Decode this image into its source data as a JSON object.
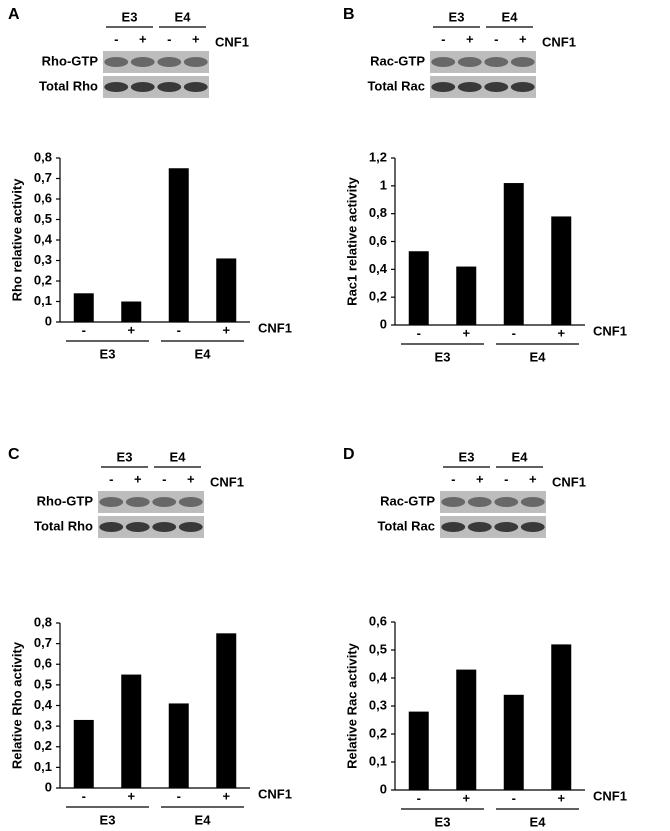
{
  "chart_data": [
    {
      "type": "bar",
      "panel": "A",
      "ylabel": "Rho relative activity",
      "categories": [
        "-",
        "+",
        "-",
        "+"
      ],
      "groups": [
        "E3",
        "E4"
      ],
      "x_label": "CNF1",
      "values": [
        0.14,
        0.1,
        0.75,
        0.31
      ],
      "color": "#000000",
      "ylim": [
        0,
        0.8
      ],
      "yticks": [
        0,
        {
          "value": 0.1,
          "label": "0,1"
        },
        {
          "value": 0.2,
          "label": "0,2"
        },
        {
          "value": 0.3,
          "label": "0,3"
        },
        {
          "value": 0.4,
          "label": "0,4"
        },
        {
          "value": 0.5,
          "label": "0,5"
        },
        {
          "value": 0.6,
          "label": "0,6"
        },
        {
          "value": 0.7,
          "label": "0,7"
        },
        {
          "value": 0.8,
          "label": "0,8"
        }
      ],
      "blot_rows": [
        "Rho-GTP",
        "Total Rho"
      ]
    },
    {
      "type": "bar",
      "panel": "B",
      "ylabel": "Rac1 relative activity",
      "categories": [
        "-",
        "+",
        "-",
        "+"
      ],
      "groups": [
        "E3",
        "E4"
      ],
      "x_label": "CNF1",
      "values": [
        0.53,
        0.42,
        1.02,
        0.78
      ],
      "color": "#000000",
      "ylim": [
        0,
        1.2
      ],
      "yticks": [
        0,
        {
          "value": 0.2,
          "label": "0,2"
        },
        {
          "value": 0.4,
          "label": "0,4"
        },
        {
          "value": 0.6,
          "label": "0,6"
        },
        {
          "value": 0.8,
          "label": "0,8"
        },
        1,
        {
          "value": 1.2,
          "label": "1,2"
        }
      ],
      "blot_rows": [
        "Rac-GTP",
        "Total Rac"
      ]
    },
    {
      "type": "bar",
      "panel": "C",
      "ylabel": "Relative Rho activity",
      "categories": [
        "-",
        "+",
        "-",
        "+"
      ],
      "groups": [
        "E3",
        "E4"
      ],
      "x_label": "CNF1",
      "values": [
        0.33,
        0.55,
        0.41,
        0.75
      ],
      "color": "#000000",
      "ylim": [
        0,
        0.8
      ],
      "yticks": [
        0,
        {
          "value": 0.1,
          "label": "0,1"
        },
        {
          "value": 0.2,
          "label": "0,2"
        },
        {
          "value": 0.3,
          "label": "0,3"
        },
        {
          "value": 0.4,
          "label": "0,4"
        },
        {
          "value": 0.5,
          "label": "0,5"
        },
        {
          "value": 0.6,
          "label": "0,6"
        },
        {
          "value": 0.7,
          "label": "0,7"
        },
        {
          "value": 0.8,
          "label": "0,8"
        }
      ],
      "blot_rows": [
        "Rho-GTP",
        "Total Rho"
      ]
    },
    {
      "type": "bar",
      "panel": "D",
      "ylabel": "Relative Rac activity",
      "categories": [
        "-",
        "+",
        "-",
        "+"
      ],
      "groups": [
        "E3",
        "E4"
      ],
      "x_label": "CNF1",
      "values": [
        0.28,
        0.43,
        0.34,
        0.52
      ],
      "color": "#000000",
      "ylim": [
        0,
        0.6
      ],
      "yticks": [
        0,
        {
          "value": 0.1,
          "label": "0,1"
        },
        {
          "value": 0.2,
          "label": "0,2"
        },
        {
          "value": 0.3,
          "label": "0,3"
        },
        {
          "value": 0.4,
          "label": "0,4"
        },
        {
          "value": 0.5,
          "label": "0,5"
        },
        {
          "value": 0.6,
          "label": "0,6"
        }
      ],
      "blot_rows": [
        "Rac-GTP",
        "Total Rac"
      ]
    }
  ]
}
